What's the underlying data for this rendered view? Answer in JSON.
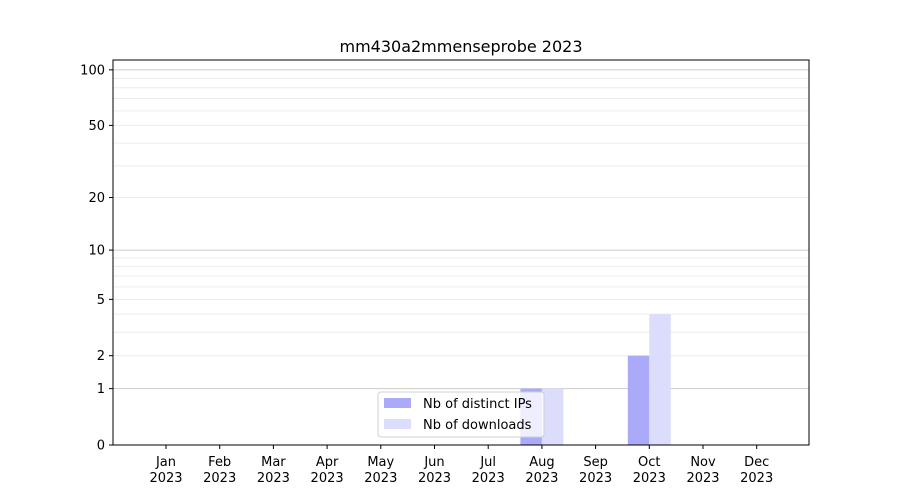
{
  "chart_data": {
    "type": "bar",
    "title": "mm430a2mmenseprobe 2023",
    "xlabel": "",
    "ylabel": "",
    "y_scale": "log(1+y)",
    "ylim": [
      0,
      113
    ],
    "y_ticks": [
      0,
      1,
      2,
      5,
      10,
      20,
      50,
      100
    ],
    "y_tick_labels": [
      "0",
      "1",
      "2",
      "5",
      "10",
      "20",
      "50",
      "100"
    ],
    "grid": true,
    "legend_placement": "bottom-center",
    "categories": [
      "Jan\n2023",
      "Feb\n2023",
      "Mar\n2023",
      "Apr\n2023",
      "May\n2023",
      "Jun\n2023",
      "Jul\n2023",
      "Aug\n2023",
      "Sep\n2023",
      "Oct\n2023",
      "Nov\n2023",
      "Dec\n2023"
    ],
    "series": [
      {
        "name": "Nb of distinct IPs",
        "color": "#aaaaf8",
        "values": [
          0,
          0,
          0,
          0,
          0,
          0,
          0,
          1,
          0,
          2,
          0,
          0
        ]
      },
      {
        "name": "Nb of downloads",
        "color": "#dcdcfc",
        "values": [
          0,
          0,
          0,
          0,
          0,
          0,
          0,
          1,
          0,
          4,
          0,
          0
        ]
      }
    ]
  }
}
